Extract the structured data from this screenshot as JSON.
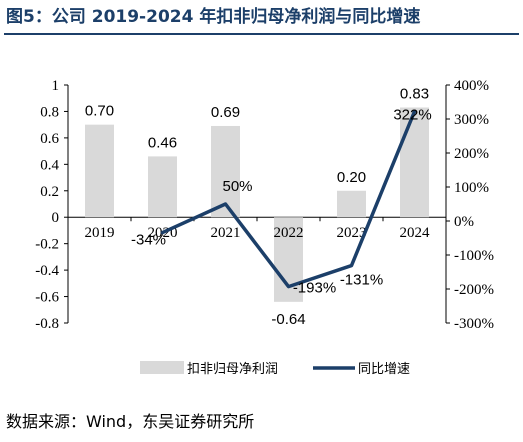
{
  "header": {
    "title": "图5：公司 2019-2024 年扣非归母净利润与同比增速"
  },
  "footer": {
    "source": "数据来源：Wind，东吴证券研究所"
  },
  "chart_data": {
    "type": "bar",
    "categories": [
      "2019",
      "2020",
      "2021",
      "2022",
      "2023",
      "2024"
    ],
    "series": [
      {
        "name": "扣非归母净利润",
        "type": "bar",
        "axis": "left",
        "color": "#d9d9d9",
        "values": [
          0.7,
          0.46,
          0.69,
          -0.64,
          0.2,
          0.83
        ],
        "labels": [
          "0.70",
          "0.46",
          "0.69",
          "-0.64",
          "0.20",
          "0.83"
        ]
      },
      {
        "name": "同比增速",
        "type": "line",
        "axis": "right",
        "color": "#1c3f69",
        "values": [
          null,
          -34,
          50,
          -193,
          -131,
          322
        ],
        "labels": [
          "",
          "-34%",
          "50%",
          "-193%",
          "-131%",
          "322%"
        ]
      }
    ],
    "y_left": {
      "lim": [
        -0.8,
        1.0
      ],
      "ticks": [
        1,
        0.8,
        0.6,
        0.4,
        0.2,
        0,
        -0.2,
        -0.4,
        -0.6,
        -0.8
      ],
      "tick_labels": [
        "1",
        "0.8",
        "0.6",
        "0.4",
        "0.2",
        "0",
        "-0.2",
        "-0.4",
        "-0.6",
        "-0.8"
      ]
    },
    "y_right": {
      "lim": [
        -300,
        400
      ],
      "ticks": [
        400,
        300,
        200,
        100,
        0,
        -100,
        -200,
        -300
      ],
      "tick_labels": [
        "400%",
        "300%",
        "200%",
        "100%",
        "0%",
        "-100%",
        "-200%",
        "-300%"
      ]
    },
    "grid": false,
    "legend": "bottom",
    "xlabel": "",
    "ylabel": ""
  }
}
